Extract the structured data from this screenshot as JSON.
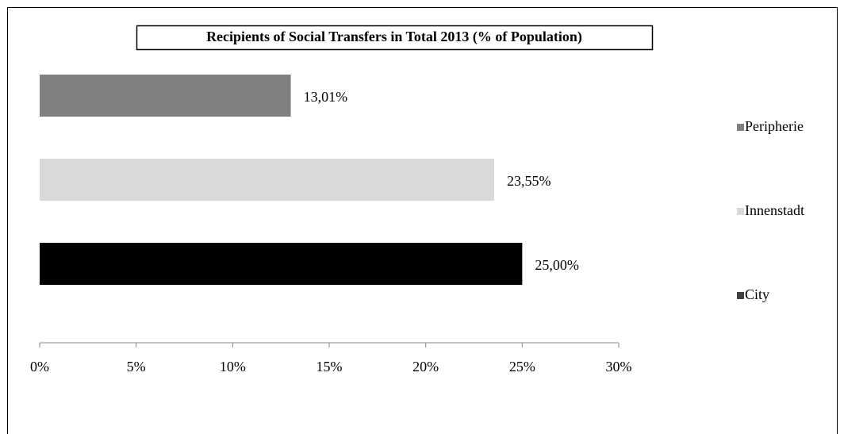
{
  "chart_data": {
    "type": "bar",
    "orientation": "horizontal",
    "title": "Recipients of Social Transfers in Total 2013 (% of Population)",
    "categories": [
      null
    ],
    "series": [
      {
        "name": "Peripherie",
        "color": "#808080",
        "values": [
          13.01
        ],
        "value_labels": [
          "13,01%"
        ]
      },
      {
        "name": "Innenstadt",
        "color": "#d9d9d9",
        "values": [
          23.55
        ],
        "value_labels": [
          "23,55%"
        ]
      },
      {
        "name": "City",
        "color": "#000000",
        "values": [
          25.0
        ],
        "value_labels": [
          "25,00%"
        ]
      }
    ],
    "xlim": [
      0,
      30
    ],
    "xticks": [
      {
        "value": 0,
        "label": "0%"
      },
      {
        "value": 5,
        "label": "5%"
      },
      {
        "value": 10,
        "label": "10%"
      },
      {
        "value": 15,
        "label": "15%"
      },
      {
        "value": 20,
        "label": "20%"
      },
      {
        "value": 25,
        "label": "25%"
      },
      {
        "value": 30,
        "label": "30%"
      }
    ],
    "legend": "right",
    "grid": false
  }
}
